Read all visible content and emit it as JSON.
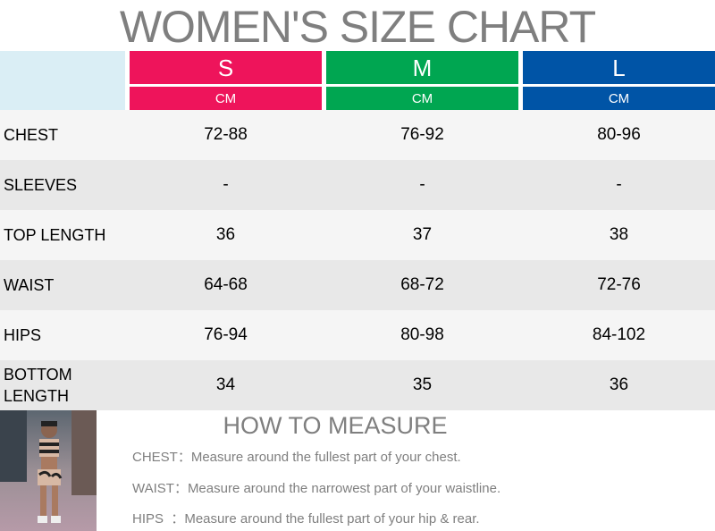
{
  "title": "WOMEN'S SIZE CHART",
  "sizes": [
    {
      "label": "S",
      "unit": "CM",
      "color": "#ee145b"
    },
    {
      "label": "M",
      "unit": "CM",
      "color": "#00a651"
    },
    {
      "label": "L",
      "unit": "CM",
      "color": "#0054a6"
    }
  ],
  "rows": [
    {
      "label": "CHEST",
      "values": [
        "72-88",
        "76-92",
        "80-96"
      ]
    },
    {
      "label": "SLEEVES",
      "values": [
        "-",
        "-",
        "-"
      ]
    },
    {
      "label": "TOP LENGTH",
      "values": [
        "36",
        "37",
        "38"
      ]
    },
    {
      "label": "WAIST",
      "values": [
        "64-68",
        "68-72",
        "72-76"
      ]
    },
    {
      "label": "HIPS",
      "values": [
        "76-94",
        "80-98",
        "84-102"
      ]
    },
    {
      "label": "BOTTOM LENGTH",
      "values": [
        "34",
        "35",
        "36"
      ]
    }
  ],
  "measure": {
    "title": "HOW TO MEASURE",
    "tips": [
      "CHEST：Measure around the fullest part of your chest.",
      "WAIST：Measure around the narrowest part of your waistline.",
      "HIPS  ：Measure around the fullest part of your hip & rear."
    ]
  }
}
